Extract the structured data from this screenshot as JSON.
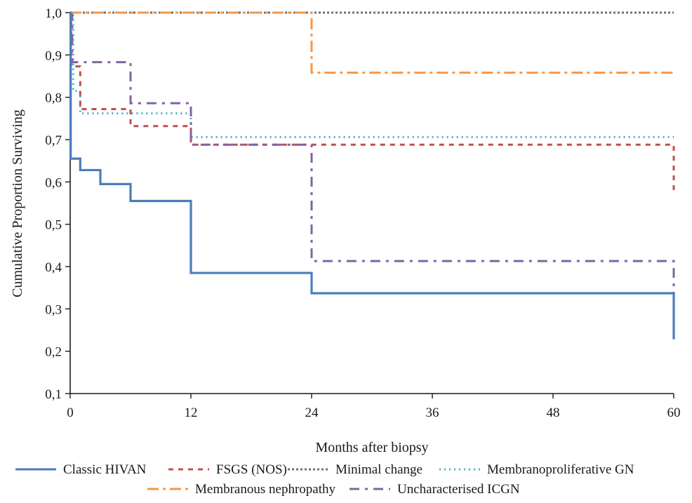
{
  "chart_data": {
    "type": "line",
    "step": true,
    "title": "",
    "xlabel": "Months after biopsy",
    "ylabel": "Cumulative Proportion Surviving",
    "xlim": [
      0,
      60
    ],
    "ylim": [
      0.1,
      1.0
    ],
    "xticks": [
      0,
      12,
      24,
      36,
      48,
      60
    ],
    "yticks": [
      0.1,
      0.2,
      0.3,
      0.4,
      0.5,
      0.6,
      0.7,
      0.8,
      0.9,
      1.0
    ],
    "x_tick_labels": [
      "0",
      "12",
      "24",
      "36",
      "48",
      "60"
    ],
    "y_tick_labels": [
      "0,1",
      "0,2",
      "0,3",
      "0,4",
      "0,5",
      "0,6",
      "0,7",
      "0,8",
      "0,9",
      "1,0"
    ],
    "grid": false,
    "legend_position": "bottom",
    "series": [
      {
        "name": "Classic HIVAN",
        "color": "#4a7ebb",
        "dash": "solid",
        "x": [
          0,
          0.05,
          1,
          3,
          6,
          12,
          24,
          60,
          60
        ],
        "y": [
          1.0,
          0.655,
          0.628,
          0.595,
          0.555,
          0.385,
          0.337,
          0.337,
          0.228
        ]
      },
      {
        "name": "FSGS (NOS)",
        "color": "#c0504d",
        "dash": "short-dash",
        "x": [
          0,
          0.1,
          1,
          6,
          12,
          60,
          60
        ],
        "y": [
          1.0,
          0.873,
          0.772,
          0.732,
          0.688,
          0.688,
          0.572
        ]
      },
      {
        "name": "Minimal change",
        "color": "#707070",
        "dash": "dot",
        "x": [
          0,
          60
        ],
        "y": [
          1.0,
          1.0
        ]
      },
      {
        "name": "Membranoproliferative GN",
        "color": "#4bacc6",
        "dash": "fine-dot",
        "x": [
          0,
          0.3,
          1,
          12,
          60
        ],
        "y": [
          1.0,
          0.815,
          0.762,
          0.706,
          0.706
        ]
      },
      {
        "name": "Membranous nephropathy",
        "color": "#f79646",
        "dash": "long-dash-dot",
        "x": [
          0,
          24,
          60
        ],
        "y": [
          1.0,
          0.858,
          0.858
        ]
      },
      {
        "name": "Uncharacterised ICGN",
        "color": "#8064a2",
        "dash": "dash-dot",
        "x": [
          0,
          0.2,
          6,
          12,
          24,
          60,
          60
        ],
        "y": [
          1.0,
          0.883,
          0.786,
          0.688,
          0.413,
          0.413,
          0.23
        ]
      }
    ]
  }
}
